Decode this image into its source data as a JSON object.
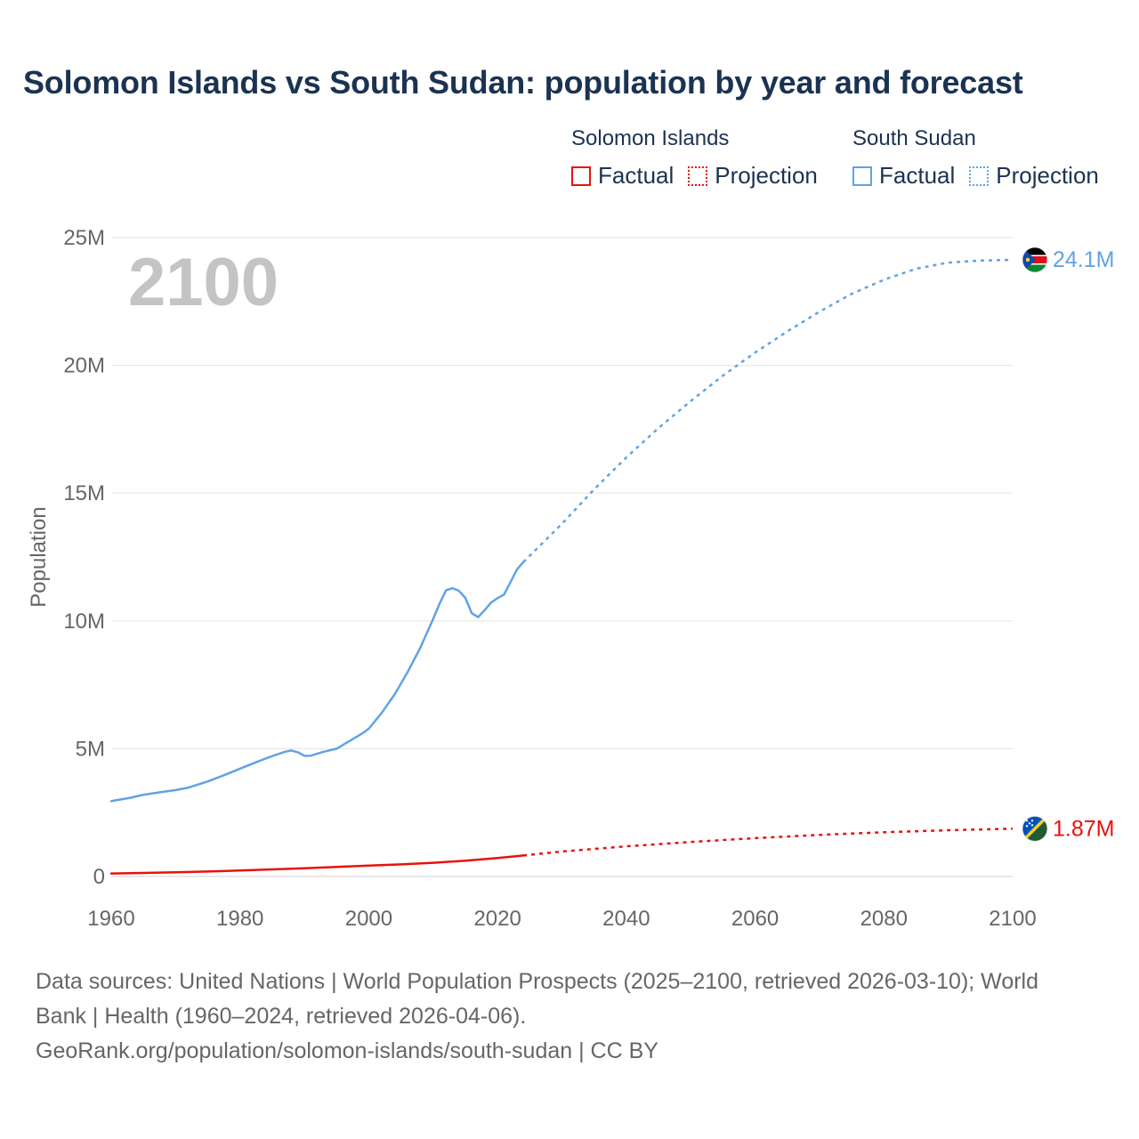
{
  "title": "Solomon Islands vs South Sudan: population by year and forecast",
  "legend": {
    "groups": [
      {
        "country": "Solomon Islands",
        "color": "#e8120c",
        "factual_label": "Factual",
        "projection_label": "Projection"
      },
      {
        "country": "South Sudan",
        "color": "#60a3e4",
        "factual_label": "Factual",
        "projection_label": "Projection"
      }
    ]
  },
  "chart_data": {
    "type": "line",
    "title": "Solomon Islands vs South Sudan: population by year and forecast",
    "xlabel": "",
    "ylabel": "Population",
    "xlim": [
      1960,
      2100
    ],
    "ylim": [
      0,
      25000000
    ],
    "x_ticks": [
      1960,
      1980,
      2000,
      2020,
      2040,
      2060,
      2080,
      2100
    ],
    "x_tick_labels": [
      "1960",
      "1980",
      "2000",
      "2020",
      "2040",
      "2060",
      "2080",
      "2100"
    ],
    "y_ticks": [
      0,
      5000000,
      10000000,
      15000000,
      20000000,
      25000000
    ],
    "y_tick_labels": [
      "0",
      "5M",
      "10M",
      "15M",
      "20M",
      "25M"
    ],
    "year_label": "2100",
    "series": [
      {
        "name": "South Sudan",
        "color": "#60a3e4",
        "end_label": "24.1M",
        "factual": {
          "x": [
            1960,
            1963,
            1965,
            1968,
            1970,
            1972,
            1975,
            1978,
            1980,
            1983,
            1985,
            1987,
            1988,
            1989,
            1990,
            1991,
            1993,
            1995,
            1997,
            1999,
            2000,
            2002,
            2004,
            2006,
            2008,
            2010,
            2011,
            2012,
            2013,
            2014,
            2015,
            2016,
            2017,
            2018,
            2019,
            2020,
            2021,
            2022,
            2023,
            2024
          ],
          "y": [
            2950000,
            3080000,
            3200000,
            3310000,
            3380000,
            3480000,
            3720000,
            4010000,
            4220000,
            4520000,
            4710000,
            4880000,
            4930000,
            4860000,
            4720000,
            4730000,
            4880000,
            5000000,
            5300000,
            5600000,
            5780000,
            6400000,
            7120000,
            7980000,
            8950000,
            10080000,
            10680000,
            11200000,
            11280000,
            11180000,
            10900000,
            10300000,
            10150000,
            10420000,
            10720000,
            10890000,
            11030000,
            11510000,
            12010000,
            12300000
          ]
        },
        "projection": {
          "x": [
            2024,
            2030,
            2035,
            2040,
            2045,
            2050,
            2055,
            2060,
            2065,
            2070,
            2075,
            2080,
            2085,
            2090,
            2095,
            2100
          ],
          "y": [
            12300000,
            13800000,
            15150000,
            16400000,
            17550000,
            18600000,
            19600000,
            20500000,
            21330000,
            22100000,
            22800000,
            23350000,
            23780000,
            24020000,
            24100000,
            24130000
          ]
        }
      },
      {
        "name": "Solomon Islands",
        "color": "#e8120c",
        "end_label": "1.87M",
        "factual": {
          "x": [
            1960,
            1965,
            1970,
            1975,
            1980,
            1985,
            1990,
            1995,
            2000,
            2005,
            2010,
            2015,
            2020,
            2024
          ],
          "y": [
            120000,
            140000,
            165000,
            195000,
            235000,
            280000,
            325000,
            375000,
            430000,
            475000,
            535000,
            620000,
            720000,
            820000
          ]
        },
        "projection": {
          "x": [
            2024,
            2030,
            2040,
            2050,
            2060,
            2070,
            2080,
            2090,
            2100
          ],
          "y": [
            820000,
            980000,
            1180000,
            1350000,
            1500000,
            1630000,
            1730000,
            1810000,
            1870000
          ]
        }
      }
    ],
    "source_lines": [
      "Data sources: United Nations | World Population Prospects (2025–2100, retrieved 2026-03-10); World",
      "Bank | Health (1960–2024, retrieved 2026-04-06).",
      "GeoRank.org/population/solomon-islands/south-sudan | CC BY"
    ]
  }
}
